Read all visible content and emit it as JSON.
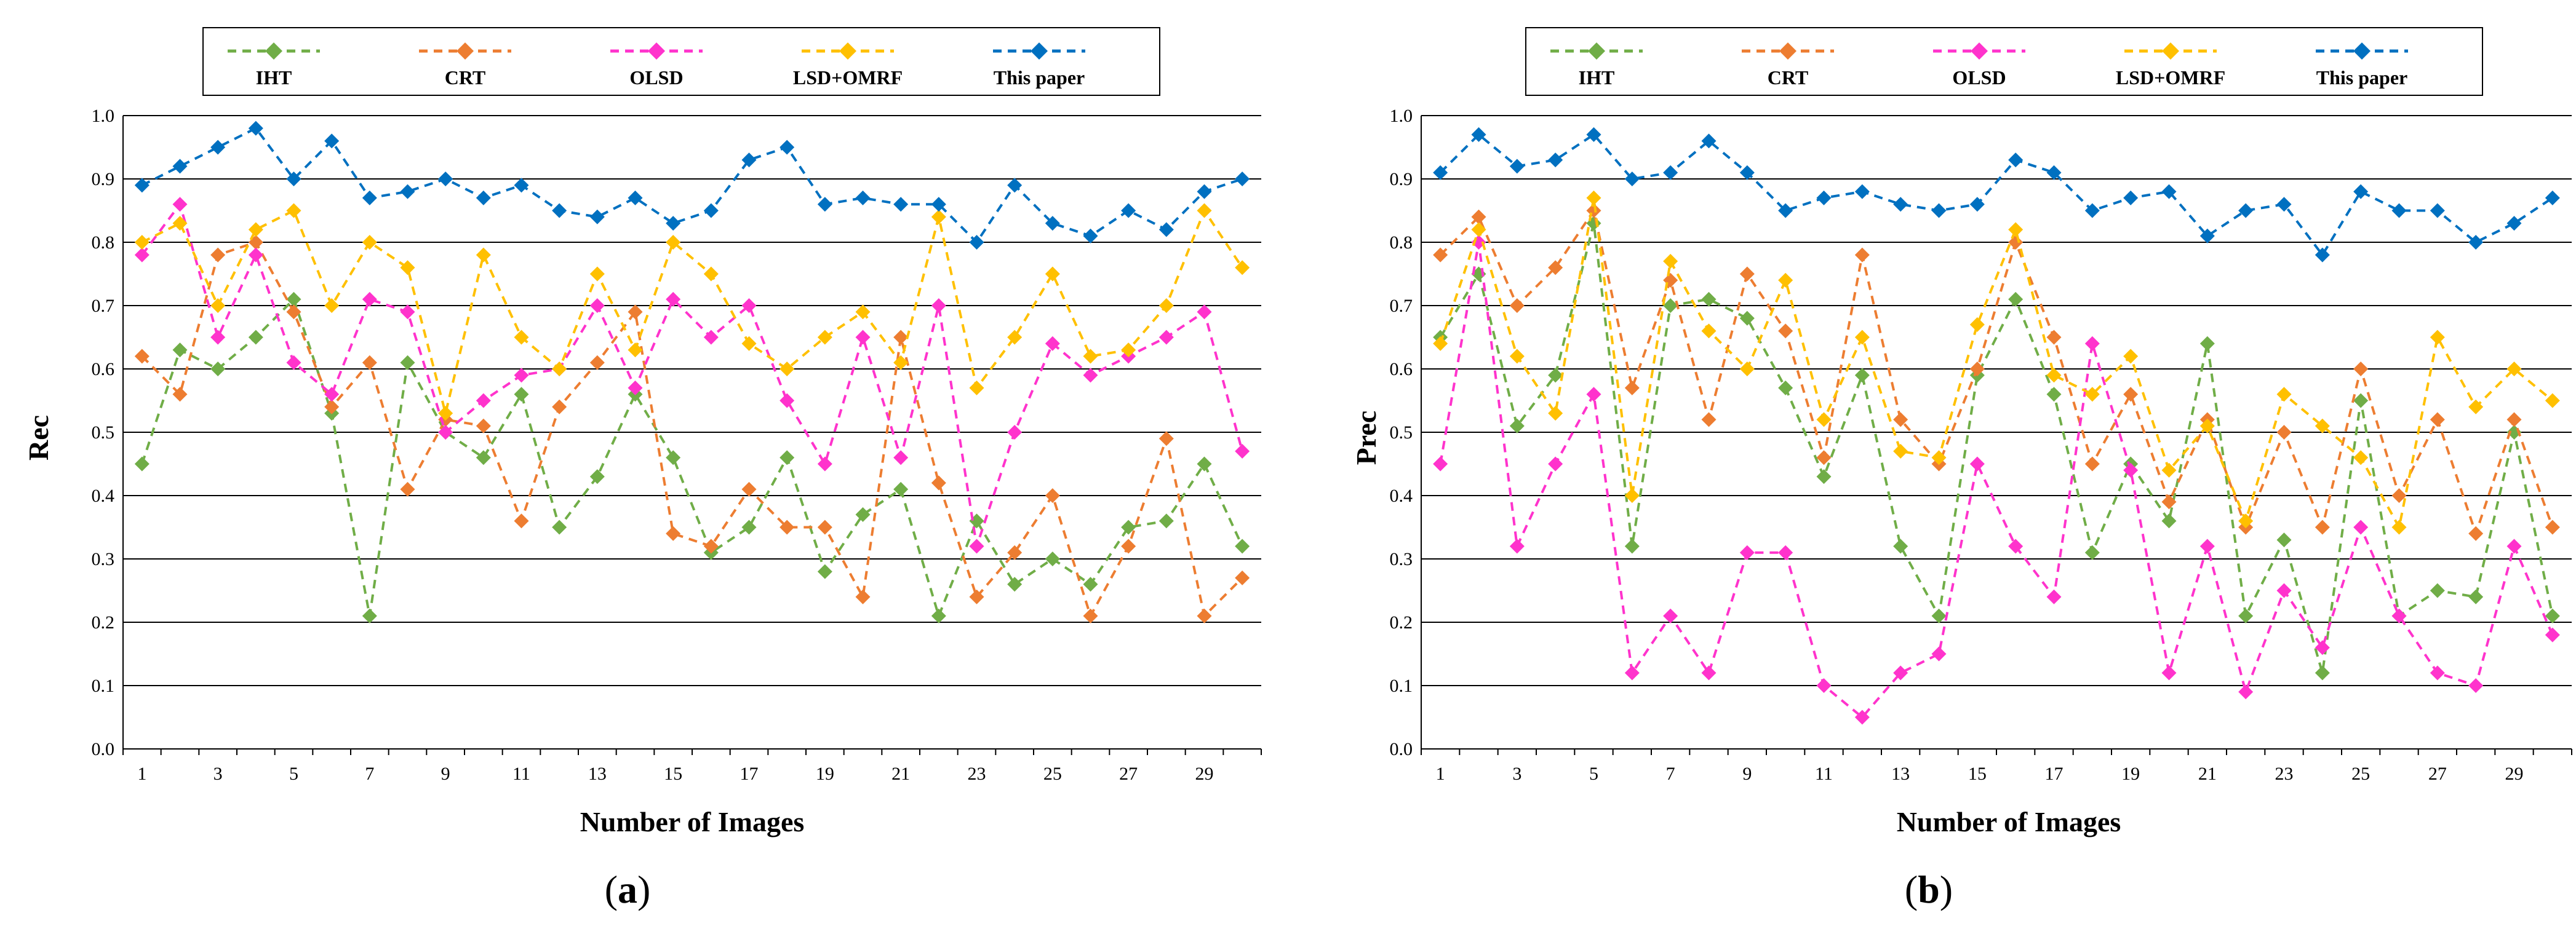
{
  "colors": {
    "IHT": "#70ad47",
    "CRT": "#ed7d31",
    "OLSD": "#ff33cc",
    "LSD+OMRF": "#ffc000",
    "This paper": "#0070c0"
  },
  "chart_data": [
    {
      "type": "line",
      "panel": "(a)",
      "caption_letter": "a",
      "xlabel": "Number of Images",
      "ylabel": "Rec",
      "ylim": [
        0,
        1.0
      ],
      "yticks": [
        "0.0",
        "0.1",
        "0.2",
        "0.3",
        "0.4",
        "0.5",
        "0.6",
        "0.7",
        "0.8",
        "0.9",
        "1.0"
      ],
      "xticks": [
        1,
        3,
        5,
        7,
        9,
        11,
        13,
        15,
        17,
        19,
        21,
        23,
        25,
        27,
        29
      ],
      "x": [
        1,
        2,
        3,
        4,
        5,
        6,
        7,
        8,
        9,
        10,
        11,
        12,
        13,
        14,
        15,
        16,
        17,
        18,
        19,
        20,
        21,
        22,
        23,
        24,
        25,
        26,
        27,
        28,
        29,
        30
      ],
      "legend": [
        "IHT",
        "CRT",
        "OLSD",
        "LSD+OMRF",
        "This paper"
      ],
      "series": [
        {
          "name": "IHT",
          "values": [
            0.45,
            0.63,
            0.6,
            0.65,
            0.71,
            0.53,
            0.21,
            0.61,
            0.5,
            0.46,
            0.56,
            0.35,
            0.43,
            0.56,
            0.46,
            0.31,
            0.35,
            0.46,
            0.28,
            0.37,
            0.41,
            0.21,
            0.36,
            0.26,
            0.3,
            0.26,
            0.35,
            0.36,
            0.45,
            0.32
          ]
        },
        {
          "name": "CRT",
          "values": [
            0.62,
            0.56,
            0.78,
            0.8,
            0.69,
            0.54,
            0.61,
            0.41,
            0.52,
            0.51,
            0.36,
            0.54,
            0.61,
            0.69,
            0.34,
            0.32,
            0.41,
            0.35,
            0.35,
            0.24,
            0.65,
            0.42,
            0.24,
            0.31,
            0.4,
            0.21,
            0.32,
            0.49,
            0.21,
            0.27
          ]
        },
        {
          "name": "OLSD",
          "values": [
            0.78,
            0.86,
            0.65,
            0.78,
            0.61,
            0.56,
            0.71,
            0.69,
            0.5,
            0.55,
            0.59,
            0.6,
            0.7,
            0.57,
            0.71,
            0.65,
            0.7,
            0.55,
            0.45,
            0.65,
            0.46,
            0.7,
            0.32,
            0.5,
            0.64,
            0.59,
            0.62,
            0.65,
            0.69,
            0.47
          ]
        },
        {
          "name": "LSD+OMRF",
          "values": [
            0.8,
            0.83,
            0.7,
            0.82,
            0.85,
            0.7,
            0.8,
            0.76,
            0.53,
            0.78,
            0.65,
            0.6,
            0.75,
            0.63,
            0.8,
            0.75,
            0.64,
            0.6,
            0.65,
            0.69,
            0.61,
            0.84,
            0.57,
            0.65,
            0.75,
            0.62,
            0.63,
            0.7,
            0.85,
            0.76
          ]
        },
        {
          "name": "This paper",
          "values": [
            0.89,
            0.92,
            0.95,
            0.98,
            0.9,
            0.96,
            0.87,
            0.88,
            0.9,
            0.87,
            0.89,
            0.85,
            0.84,
            0.87,
            0.83,
            0.85,
            0.93,
            0.95,
            0.86,
            0.87,
            0.86,
            0.86,
            0.8,
            0.89,
            0.83,
            0.81,
            0.85,
            0.82,
            0.88,
            0.9
          ]
        }
      ]
    },
    {
      "type": "line",
      "panel": "(b)",
      "caption_letter": "b",
      "xlabel": "Number of Images",
      "ylabel": "Prec",
      "ylim": [
        0,
        1.0
      ],
      "yticks": [
        "0.0",
        "0.1",
        "0.2",
        "0.3",
        "0.4",
        "0.5",
        "0.6",
        "0.7",
        "0.8",
        "0.9",
        "1.0"
      ],
      "xticks": [
        1,
        3,
        5,
        7,
        9,
        11,
        13,
        15,
        17,
        19,
        21,
        23,
        25,
        27,
        29
      ],
      "x": [
        1,
        2,
        3,
        4,
        5,
        6,
        7,
        8,
        9,
        10,
        11,
        12,
        13,
        14,
        15,
        16,
        17,
        18,
        19,
        20,
        21,
        22,
        23,
        24,
        25,
        26,
        27,
        28,
        29,
        30
      ],
      "legend": [
        "IHT",
        "CRT",
        "OLSD",
        "LSD+OMRF",
        "This paper"
      ],
      "series": [
        {
          "name": "IHT",
          "values": [
            0.65,
            0.75,
            0.51,
            0.59,
            0.83,
            0.32,
            0.7,
            0.71,
            0.68,
            0.57,
            0.43,
            0.59,
            0.32,
            0.21,
            0.59,
            0.71,
            0.56,
            0.31,
            0.45,
            0.36,
            0.64,
            0.21,
            0.33,
            0.12,
            0.55,
            0.21,
            0.25,
            0.24,
            0.5,
            0.21
          ]
        },
        {
          "name": "CRT",
          "values": [
            0.78,
            0.84,
            0.7,
            0.76,
            0.85,
            0.57,
            0.74,
            0.52,
            0.75,
            0.66,
            0.46,
            0.78,
            0.52,
            0.45,
            0.6,
            0.8,
            0.65,
            0.45,
            0.56,
            0.39,
            0.52,
            0.35,
            0.5,
            0.35,
            0.6,
            0.4,
            0.52,
            0.34,
            0.52,
            0.35
          ]
        },
        {
          "name": "OLSD",
          "values": [
            0.45,
            0.8,
            0.32,
            0.45,
            0.56,
            0.12,
            0.21,
            0.12,
            0.31,
            0.31,
            0.1,
            0.05,
            0.12,
            0.15,
            0.45,
            0.32,
            0.24,
            0.64,
            0.44,
            0.12,
            0.32,
            0.09,
            0.25,
            0.16,
            0.35,
            0.21,
            0.12,
            0.1,
            0.32,
            0.18
          ]
        },
        {
          "name": "LSD+OMRF",
          "values": [
            0.64,
            0.82,
            0.62,
            0.53,
            0.87,
            0.4,
            0.77,
            0.66,
            0.6,
            0.74,
            0.52,
            0.65,
            0.47,
            0.46,
            0.67,
            0.82,
            0.59,
            0.56,
            0.62,
            0.44,
            0.51,
            0.36,
            0.56,
            0.51,
            0.46,
            0.35,
            0.65,
            0.54,
            0.6,
            0.55
          ]
        },
        {
          "name": "This paper",
          "values": [
            0.91,
            0.97,
            0.92,
            0.93,
            0.97,
            0.9,
            0.91,
            0.96,
            0.91,
            0.85,
            0.87,
            0.88,
            0.86,
            0.85,
            0.86,
            0.93,
            0.91,
            0.85,
            0.87,
            0.88,
            0.81,
            0.85,
            0.86,
            0.78,
            0.88,
            0.85,
            0.85,
            0.8,
            0.83,
            0.87
          ]
        }
      ]
    }
  ]
}
